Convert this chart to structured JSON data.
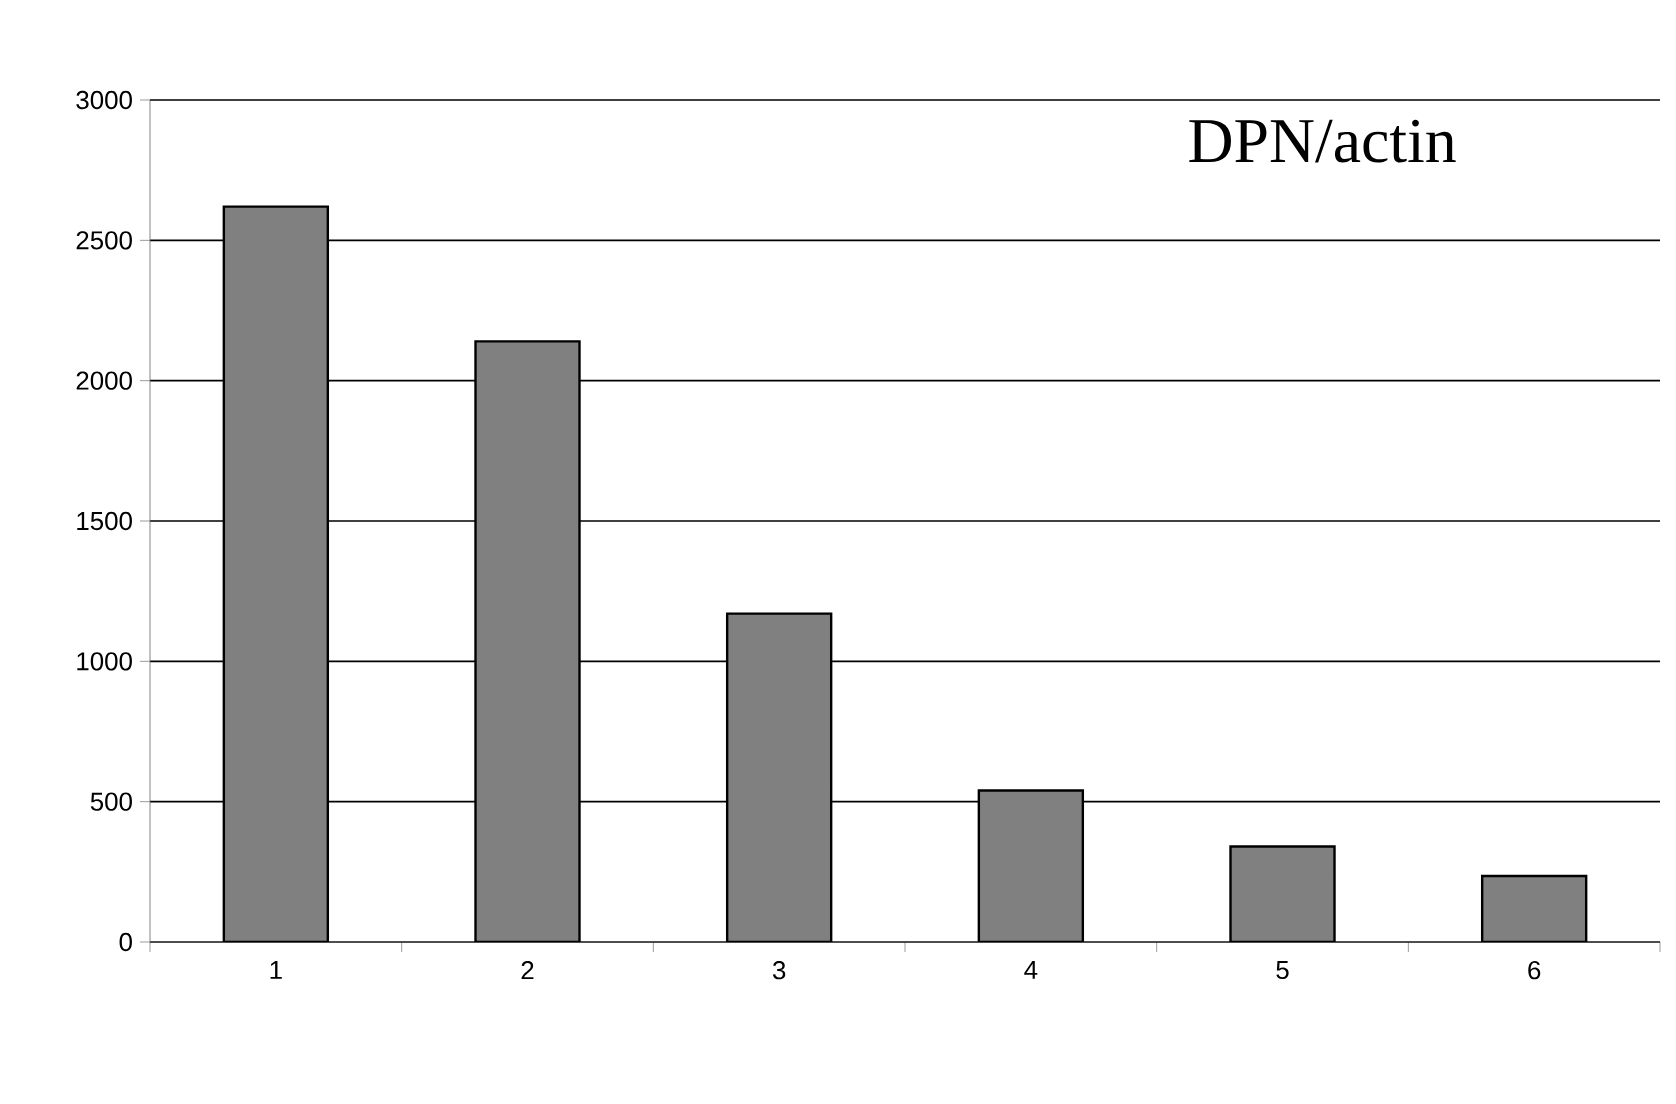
{
  "chart_data": {
    "type": "bar",
    "title": "DPN/actin",
    "categories": [
      "1",
      "2",
      "3",
      "4",
      "5",
      "6"
    ],
    "values": [
      2620,
      2140,
      1170,
      540,
      340,
      235
    ],
    "color": "#808080",
    "ylim": [
      0,
      3000
    ],
    "yticks": [
      0,
      500,
      1000,
      1500,
      2000,
      2500,
      3000
    ],
    "grid": "y"
  }
}
